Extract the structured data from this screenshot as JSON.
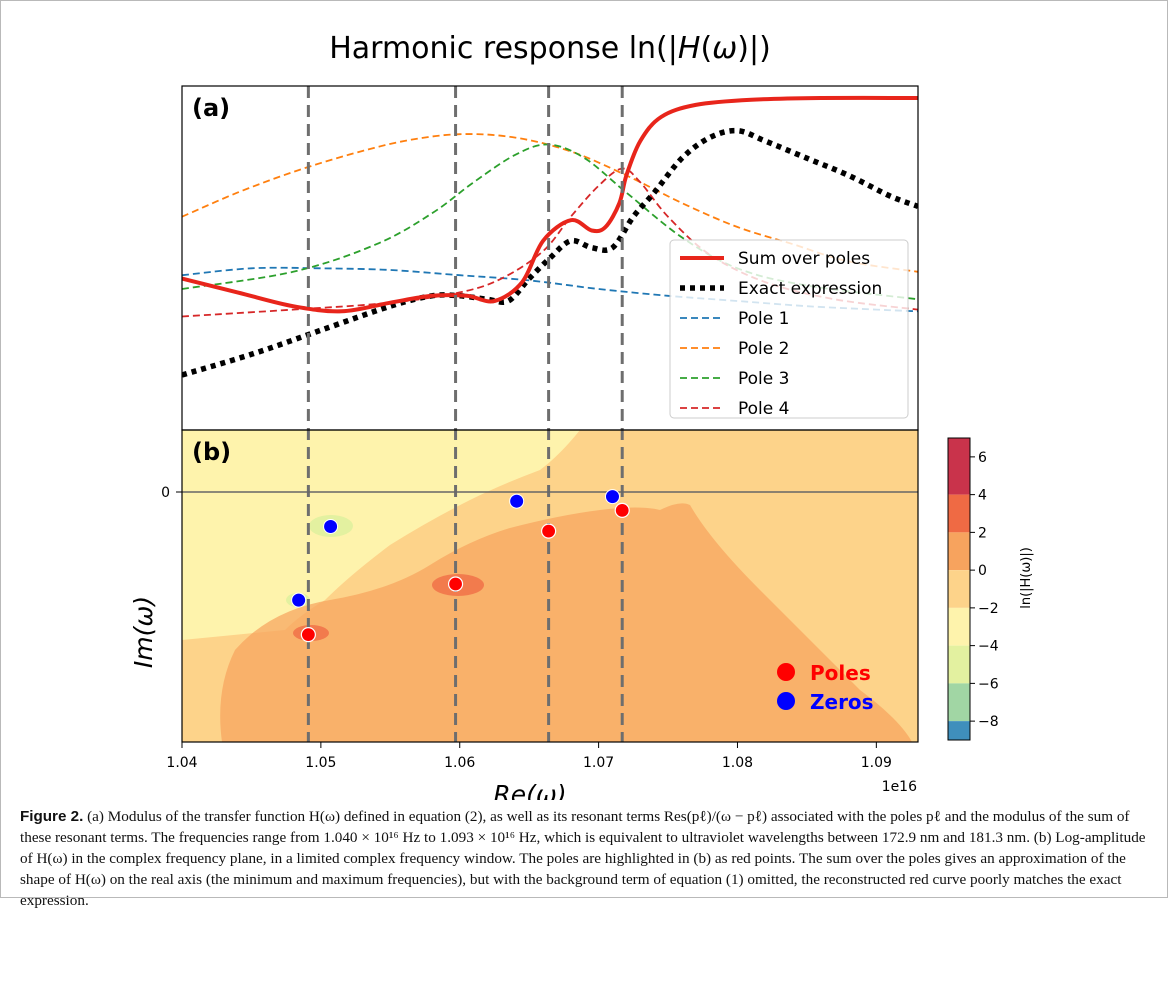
{
  "figure": {
    "title_text": "Harmonic response ln(|",
    "title_var": "H",
    "title_paren": "(",
    "title_omega": "ω",
    "title_close": ")|)",
    "panel_a_label": "(a)",
    "panel_b_label": "(b)"
  },
  "chart_data": [
    {
      "type": "line",
      "panel": "(a)",
      "xlim": [
        1.04e+16,
        1.093e+16
      ],
      "vlines": [
        1.0491e+16,
        1.0597e+16,
        1.0664e+16,
        1.0717e+16
      ],
      "legend_placement": "right",
      "series": [
        {
          "name": "Sum over poles",
          "color": "#e8251b",
          "style": "solid",
          "x": [
            1.04,
            1.044,
            1.048,
            1.0515,
            1.055,
            1.058,
            1.0605,
            1.0625,
            1.0645,
            1.066,
            1.068,
            1.0695,
            1.0705,
            1.0715,
            1.072,
            1.073,
            1.0745,
            1.077,
            1.081,
            1.086,
            1.093
          ],
          "y": [
            0.44,
            0.4,
            0.36,
            0.345,
            0.37,
            0.39,
            0.39,
            0.375,
            0.43,
            0.55,
            0.61,
            0.58,
            0.59,
            0.66,
            0.74,
            0.84,
            0.91,
            0.945,
            0.96,
            0.965,
            0.965
          ]
        },
        {
          "name": "Exact expression",
          "color": "#000000",
          "style": "dotted",
          "x": [
            1.04,
            1.045,
            1.05,
            1.055,
            1.058,
            1.06,
            1.062,
            1.0635,
            1.065,
            1.0665,
            1.068,
            1.0695,
            1.071,
            1.0725,
            1.074,
            1.076,
            1.078,
            1.08,
            1.082,
            1.085,
            1.088,
            1.091,
            1.093
          ],
          "y": [
            0.16,
            0.22,
            0.29,
            0.36,
            0.39,
            0.39,
            0.38,
            0.375,
            0.44,
            0.5,
            0.55,
            0.53,
            0.53,
            0.62,
            0.69,
            0.79,
            0.85,
            0.87,
            0.84,
            0.79,
            0.74,
            0.68,
            0.65
          ]
        },
        {
          "name": "Pole 1",
          "color": "#1f77b4",
          "style": "dashed",
          "x": [
            1.04,
            1.045,
            1.05,
            1.055,
            1.06,
            1.065,
            1.07,
            1.075,
            1.08,
            1.085,
            1.09,
            1.093
          ],
          "y": [
            0.45,
            0.47,
            0.47,
            0.465,
            0.45,
            0.435,
            0.41,
            0.39,
            0.375,
            0.36,
            0.35,
            0.345
          ]
        },
        {
          "name": "Pole 2",
          "color": "#ff7f0e",
          "style": "dashed",
          "x": [
            1.04,
            1.044,
            1.048,
            1.052,
            1.056,
            1.06,
            1.064,
            1.068,
            1.072,
            1.076,
            1.08,
            1.084,
            1.088,
            1.093
          ],
          "y": [
            0.62,
            0.69,
            0.75,
            0.8,
            0.84,
            0.86,
            0.85,
            0.81,
            0.74,
            0.66,
            0.59,
            0.54,
            0.49,
            0.46
          ]
        },
        {
          "name": "Pole 3",
          "color": "#2ca02c",
          "style": "dashed",
          "x": [
            1.04,
            1.048,
            1.054,
            1.058,
            1.061,
            1.064,
            1.0664,
            1.069,
            1.072,
            1.076,
            1.08,
            1.085,
            1.093
          ],
          "y": [
            0.41,
            0.46,
            0.54,
            0.63,
            0.72,
            0.8,
            0.83,
            0.79,
            0.69,
            0.56,
            0.47,
            0.42,
            0.38
          ]
        },
        {
          "name": "Pole 4",
          "color": "#d62728",
          "style": "dashed",
          "x": [
            1.04,
            1.048,
            1.055,
            1.06,
            1.063,
            1.066,
            1.068,
            1.07,
            1.0717,
            1.073,
            1.075,
            1.078,
            1.082,
            1.087,
            1.093
          ],
          "y": [
            0.33,
            0.35,
            0.37,
            0.4,
            0.44,
            0.52,
            0.62,
            0.71,
            0.76,
            0.72,
            0.62,
            0.51,
            0.43,
            0.38,
            0.35
          ]
        }
      ]
    },
    {
      "type": "contour",
      "panel": "(b)",
      "xlim": [
        1.04e+16,
        1.093e+16
      ],
      "xticks": [
        "1.04",
        "1.05",
        "1.06",
        "1.07",
        "1.08",
        "1.09"
      ],
      "x_offset_label": "1e16",
      "yticks": [
        "0"
      ],
      "xlabel": "Re(ω)",
      "ylabel": "Im(ω)",
      "colorbar": {
        "label": "ln(|H(ω)|)",
        "ticks": [
          "6",
          "4",
          "2",
          "0",
          "−2",
          "−4",
          "−6",
          "−8"
        ],
        "levels": [
          {
            "range": [
              4,
              7
            ],
            "color": "#c9334b"
          },
          {
            "range": [
              2,
              4
            ],
            "color": "#ef6a44"
          },
          {
            "range": [
              0,
              2
            ],
            "color": "#f7a35e"
          },
          {
            "range": [
              -2,
              0
            ],
            "color": "#fdd38a"
          },
          {
            "range": [
              -4,
              -2
            ],
            "color": "#fef3ac"
          },
          {
            "range": [
              -6,
              -4
            ],
            "color": "#e3f1a0"
          },
          {
            "range": [
              -8,
              -6
            ],
            "color": "#a1d6a4"
          },
          {
            "range": [
              -9,
              -8
            ],
            "color": "#3f8fbc"
          }
        ]
      },
      "poles": {
        "label": "Poles",
        "color": "#ff0000",
        "points": [
          {
            "x": 1.0491,
            "y": -0.62
          },
          {
            "x": 1.0597,
            "y": -0.4
          },
          {
            "x": 1.0664,
            "y": -0.17
          },
          {
            "x": 1.0717,
            "y": -0.08
          }
        ]
      },
      "zeros": {
        "label": "Zeros",
        "color": "#0000ff",
        "points": [
          {
            "x": 1.0484,
            "y": -0.47
          },
          {
            "x": 1.0507,
            "y": -0.15
          },
          {
            "x": 1.0641,
            "y": -0.04
          },
          {
            "x": 1.071,
            "y": -0.02
          }
        ]
      }
    }
  ],
  "caption": {
    "label": "Figure 2.",
    "text": " (a) Modulus of the transfer function H(ω) defined in equation (2), as well as its resonant terms Res(pℓ)/(ω − pℓ) associated with the poles pℓ and the modulus of the sum of these resonant terms. The frequencies range from 1.040 × 10¹⁶ Hz to 1.093 × 10¹⁶ Hz, which is equivalent to ultraviolet wavelengths between 172.9 nm and 181.3 nm. (b) Log-amplitude of H(ω) in the complex frequency plane, in a limited complex frequency window. The poles are highlighted in (b) as red points. The sum over the poles gives an approximation of the shape of H(ω) on the real axis (the minimum and maximum frequencies), but with the background term of equation (1) omitted, the reconstructed red curve poorly matches the exact expression."
  }
}
